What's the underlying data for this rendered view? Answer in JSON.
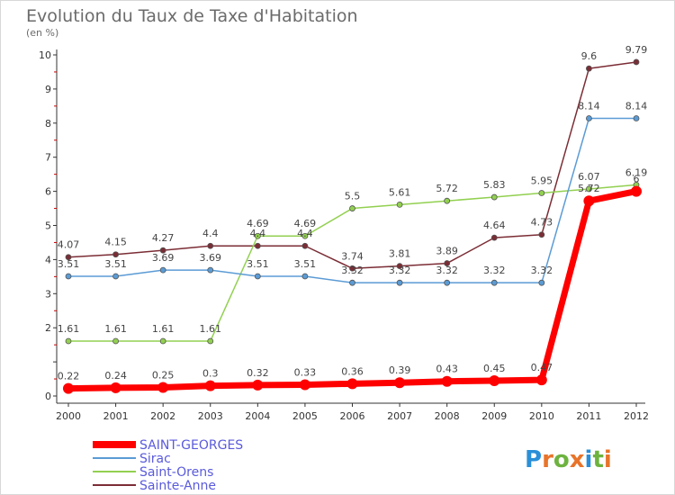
{
  "title": "Evolution du Taux de Taxe d'Habitation",
  "subtitle": "(en %)",
  "logo_text": "Proxiti",
  "chart_data": {
    "type": "line",
    "title": "Evolution du Taux de Taxe d'Habitation",
    "subtitle": "(en %)",
    "xlabel": "",
    "ylabel": "",
    "x": [
      "2000",
      "2001",
      "2002",
      "2003",
      "2004",
      "2005",
      "2006",
      "2007",
      "2008",
      "2009",
      "2010",
      "2011",
      "2012"
    ],
    "ylim": [
      0,
      10
    ],
    "yticks": [
      "0",
      "",
      "2",
      "3",
      "4",
      "5",
      "6",
      "7",
      "8",
      "9",
      "10"
    ],
    "grid": false,
    "legend_position": "bottom-left",
    "series": [
      {
        "name": "SAINT-GEORGES",
        "color": "#ff0000",
        "width": 7,
        "marker_r": 6,
        "values": [
          0.22,
          0.24,
          0.25,
          0.3,
          0.32,
          0.33,
          0.36,
          0.39,
          0.43,
          0.45,
          0.47,
          5.72,
          6.0
        ],
        "labels": [
          "0.22",
          "0.24",
          "0.25",
          "0.3",
          "0.32",
          "0.33",
          "0.36",
          "0.39",
          "0.43",
          "0.45",
          "0.47",
          "5.72",
          "6"
        ]
      },
      {
        "name": "Sirac",
        "color": "#5b9bd5",
        "width": 1.5,
        "marker_r": 3,
        "values": [
          3.51,
          3.51,
          3.69,
          3.69,
          3.51,
          3.51,
          3.32,
          3.32,
          3.32,
          3.32,
          3.32,
          8.14,
          8.14
        ],
        "labels": [
          "3.51",
          "3.51",
          "3.69",
          "3.69",
          "3.51",
          "3.51",
          "3.32",
          "3.32",
          "3.32",
          "3.32",
          "3.32",
          "8.14",
          "8.14"
        ]
      },
      {
        "name": "Saint-Orens",
        "color": "#92d050",
        "width": 1.5,
        "marker_r": 3,
        "values": [
          1.61,
          1.61,
          1.61,
          1.61,
          4.69,
          4.69,
          5.5,
          5.61,
          5.72,
          5.83,
          5.95,
          6.07,
          6.19
        ],
        "labels": [
          "1.61",
          "1.61",
          "1.61",
          "1.61",
          "4.69",
          "4.69",
          "5.5",
          "5.61",
          "5.72",
          "5.83",
          "5.95",
          "6.07",
          "6.19"
        ]
      },
      {
        "name": "Sainte-Anne",
        "color": "#7b2d35",
        "width": 1.5,
        "marker_r": 3,
        "values": [
          4.07,
          4.15,
          4.27,
          4.4,
          4.4,
          4.4,
          3.74,
          3.81,
          3.89,
          4.64,
          4.73,
          9.6,
          9.79
        ],
        "labels": [
          "4.07",
          "4.15",
          "4.27",
          "4.4",
          "4.4",
          "4.4",
          "3.74",
          "3.81",
          "3.89",
          "4.64",
          "4.73",
          "9.6",
          "9.79"
        ]
      }
    ]
  }
}
